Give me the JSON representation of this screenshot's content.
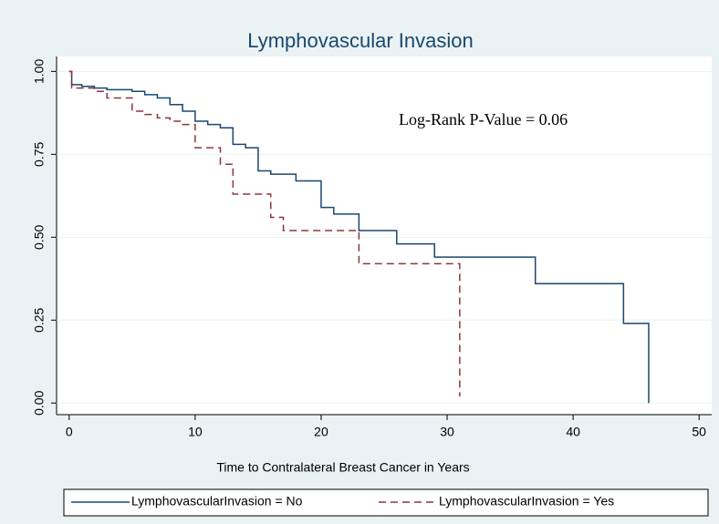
{
  "chart_data": {
    "type": "line",
    "title": "Lymphovascular Invasion",
    "xlabel": "Time to Contralateral Breast Cancer in Years",
    "annotation": "Log-Rank P-Value = 0.06",
    "xlim": [
      -1,
      51
    ],
    "ylim": [
      -0.035,
      1.045
    ],
    "xticks": [
      0,
      10,
      20,
      30,
      40,
      50
    ],
    "yticks": [
      {
        "value": 0,
        "label": "0.00"
      },
      {
        "value": 0.25,
        "label": "0.25"
      },
      {
        "value": 0.5,
        "label": "0.50"
      },
      {
        "value": 0.75,
        "label": "0.75"
      },
      {
        "value": 1,
        "label": "1.00"
      }
    ],
    "grid": true,
    "legend": "bottom",
    "series": [
      {
        "name": "LymphovascularInvasion = No",
        "color": "#1a476f",
        "dash": false,
        "x": [
          0,
          0.2,
          0.2,
          1,
          1,
          2,
          2,
          3,
          3,
          5,
          5,
          6,
          6,
          7,
          7,
          8,
          8,
          9,
          9,
          10,
          10,
          11,
          11,
          12,
          12,
          13,
          13,
          14,
          14,
          15,
          15,
          16,
          16,
          18,
          18,
          20,
          20,
          21,
          21,
          23,
          23,
          26,
          26,
          29,
          29,
          37,
          37,
          44,
          44,
          46,
          46
        ],
        "values": [
          1,
          1,
          0.96,
          0.96,
          0.955,
          0.955,
          0.95,
          0.95,
          0.945,
          0.945,
          0.94,
          0.94,
          0.93,
          0.93,
          0.92,
          0.92,
          0.9,
          0.9,
          0.88,
          0.88,
          0.85,
          0.85,
          0.84,
          0.84,
          0.83,
          0.83,
          0.78,
          0.78,
          0.77,
          0.77,
          0.7,
          0.7,
          0.69,
          0.69,
          0.67,
          0.67,
          0.59,
          0.59,
          0.57,
          0.57,
          0.52,
          0.52,
          0.48,
          0.48,
          0.44,
          0.44,
          0.36,
          0.36,
          0.24,
          0.24,
          0
        ]
      },
      {
        "name": "LymphovascularInvasion = Yes",
        "color": "#90353b",
        "dash": true,
        "x": [
          0,
          0.2,
          0.2,
          2,
          2,
          3,
          3,
          5,
          5,
          6,
          6,
          7,
          7,
          8,
          8,
          9,
          9,
          10,
          10,
          12,
          12,
          13,
          13,
          16,
          16,
          17,
          17,
          23,
          23,
          31,
          31
        ],
        "values": [
          1,
          1,
          0.95,
          0.95,
          0.94,
          0.94,
          0.92,
          0.92,
          0.88,
          0.88,
          0.87,
          0.87,
          0.86,
          0.86,
          0.85,
          0.85,
          0.84,
          0.84,
          0.77,
          0.77,
          0.72,
          0.72,
          0.63,
          0.63,
          0.56,
          0.56,
          0.52,
          0.52,
          0.42,
          0.42,
          0.02
        ]
      }
    ]
  }
}
